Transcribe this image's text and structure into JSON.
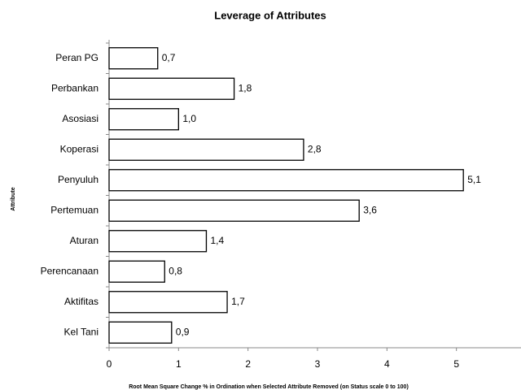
{
  "chart_data": {
    "type": "bar",
    "orientation": "horizontal",
    "title": "Leverage of Attributes",
    "xlabel": "Root Mean Square Change % in Ordination when Selected Attribute Removed (on Status scale 0 to 100)",
    "ylabel": "Attribute",
    "categories": [
      "Peran PG",
      "Perbankan",
      "Asosiasi",
      "Koperasi",
      "Penyuluh",
      "Pertemuan",
      "Aturan",
      "Perencanaan",
      "Aktifitas",
      "Kel Tani"
    ],
    "values": [
      0.7,
      1.8,
      1.0,
      2.8,
      5.1,
      3.6,
      1.4,
      0.8,
      1.7,
      0.9
    ],
    "value_labels": [
      "0,7",
      "1,8",
      "1,0",
      "2,8",
      "5,1",
      "3,6",
      "1,4",
      "0,8",
      "1,7",
      "0,9"
    ],
    "color": "#ffffff",
    "edgecolor": "#000000",
    "xlim": [
      0,
      6
    ],
    "xticks": [
      0,
      1,
      2,
      3,
      4,
      5,
      6
    ],
    "grid": false
  }
}
